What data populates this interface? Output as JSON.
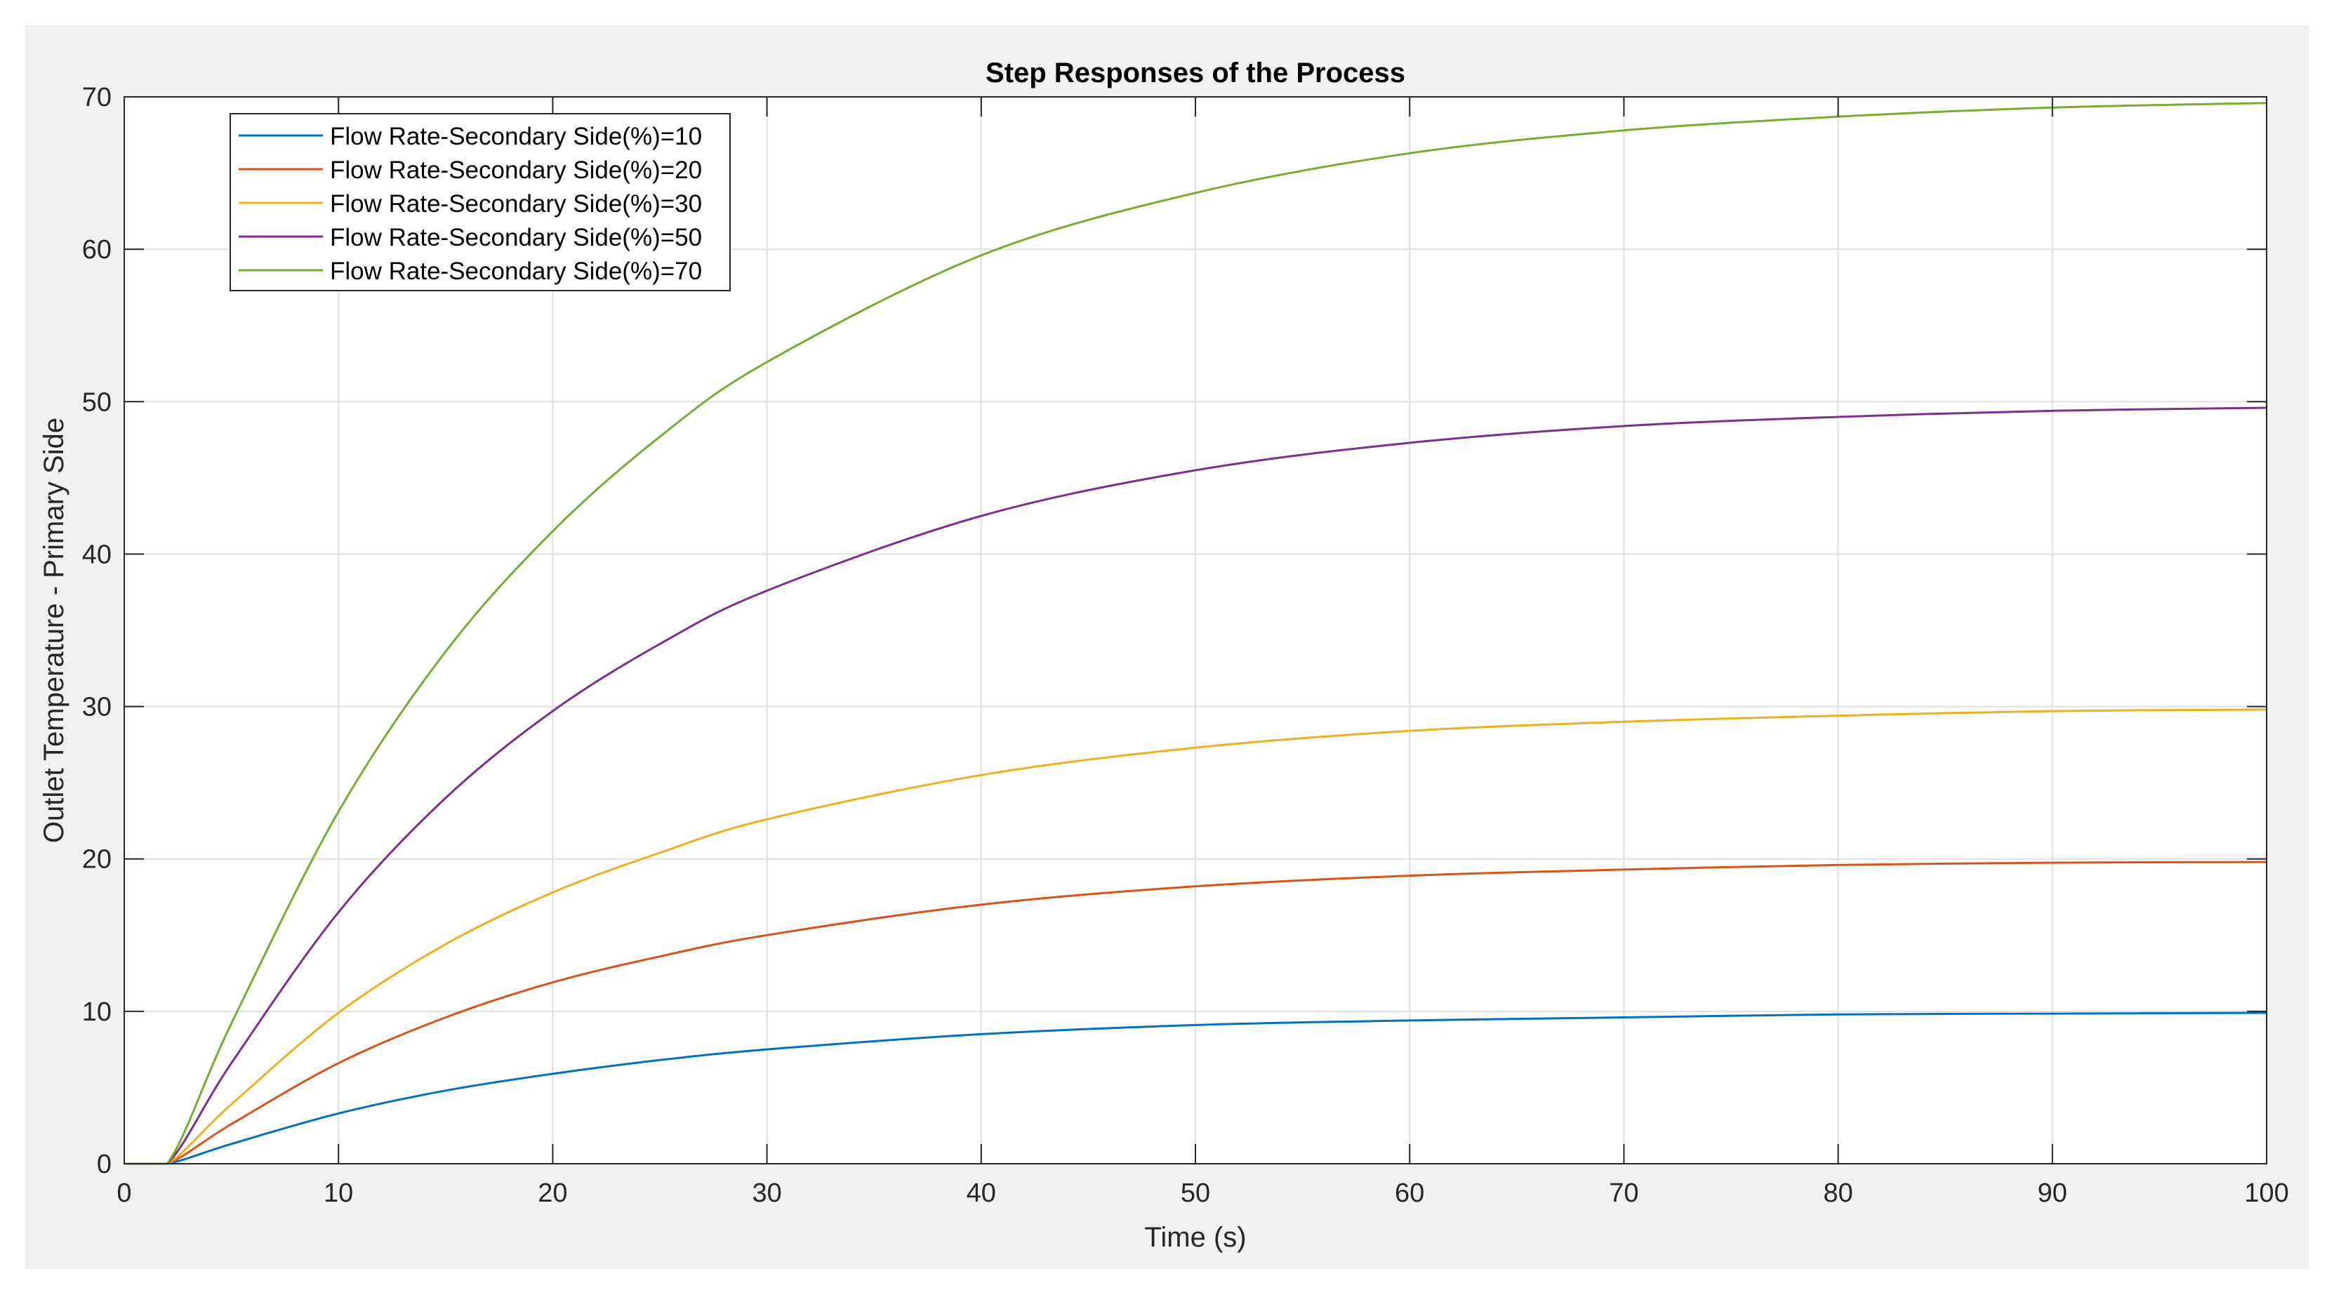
{
  "chart_data": {
    "type": "line",
    "title": "Step Responses of the Process",
    "xlabel": "Time (s)",
    "ylabel": "Outlet Temperature - Primary Side",
    "xlim": [
      0,
      100
    ],
    "ylim": [
      0,
      70
    ],
    "xticks": [
      "0",
      "10",
      "20",
      "30",
      "40",
      "50",
      "60",
      "70",
      "80",
      "90",
      "100"
    ],
    "yticks": [
      "0",
      "10",
      "20",
      "30",
      "40",
      "50",
      "60",
      "70"
    ],
    "grid": true,
    "legend_position": "top-left",
    "x": [
      0,
      2,
      5,
      10,
      15,
      20,
      25,
      30,
      40,
      50,
      60,
      70,
      80,
      90,
      100
    ],
    "series": [
      {
        "name": "Flow Rate-Secondary Side(%)=10",
        "color": "#0072BD",
        "values": [
          0,
          0,
          1.3,
          3.3,
          4.8,
          5.9,
          6.8,
          7.5,
          8.5,
          9.1,
          9.4,
          9.6,
          9.8,
          9.85,
          9.9
        ]
      },
      {
        "name": "Flow Rate-Secondary Side(%)=20",
        "color": "#D95319",
        "values": [
          0,
          0,
          2.6,
          6.6,
          9.6,
          11.9,
          13.6,
          15.0,
          17.0,
          18.2,
          18.9,
          19.3,
          19.6,
          19.75,
          19.8
        ]
      },
      {
        "name": "Flow Rate-Secondary Side(%)=30",
        "color": "#EDB120",
        "values": [
          0,
          0,
          3.9,
          9.9,
          14.4,
          17.8,
          20.4,
          22.6,
          25.5,
          27.3,
          28.4,
          29.0,
          29.4,
          29.7,
          29.8
        ]
      },
      {
        "name": "Flow Rate-Secondary Side(%)=50",
        "color": "#7E2F8E",
        "values": [
          0,
          0,
          6.6,
          16.5,
          24.0,
          29.7,
          34.1,
          37.6,
          42.5,
          45.5,
          47.3,
          48.4,
          49.0,
          49.4,
          49.6
        ]
      },
      {
        "name": "Flow Rate-Secondary Side(%)=70",
        "color": "#77AC30",
        "values": [
          0,
          0,
          9.2,
          23.1,
          33.6,
          41.5,
          47.7,
          52.6,
          59.6,
          63.7,
          66.3,
          67.8,
          68.7,
          69.3,
          69.6
        ]
      }
    ]
  }
}
